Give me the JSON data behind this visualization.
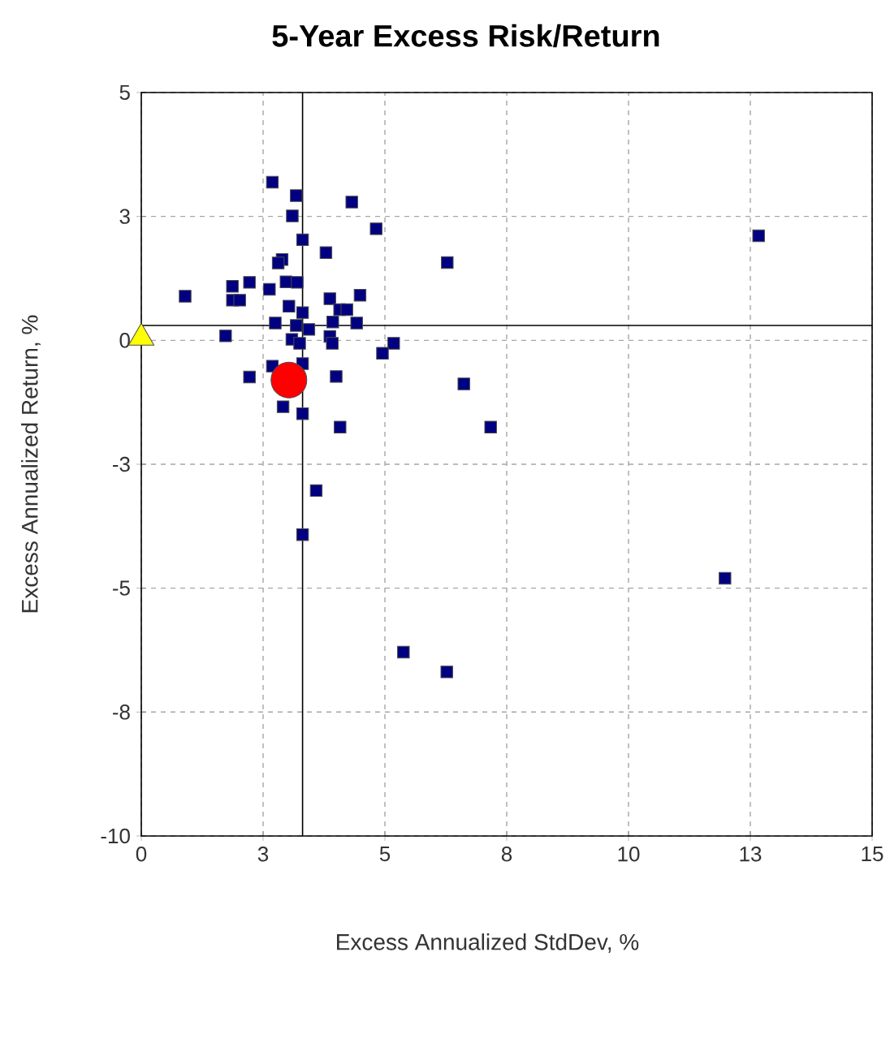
{
  "chart_data": {
    "type": "scatter",
    "title": "5-Year Excess Risk/Return",
    "xlabel": "Excess Annualized StdDev, %",
    "ylabel": "Excess Annualized Return, %",
    "xlim": [
      0,
      15
    ],
    "ylim": [
      -10,
      5
    ],
    "xticks": [
      0,
      {
        "value": 2.5,
        "label": "3"
      },
      5,
      {
        "value": 7.5,
        "label": "8"
      },
      10,
      {
        "value": 12.5,
        "label": "13"
      },
      15
    ],
    "yticks": [
      -10,
      {
        "value": -7.5,
        "label": "-8"
      },
      -5,
      {
        "value": -2.5,
        "label": "-3"
      },
      0,
      {
        "value": 2.5,
        "label": "3"
      },
      5
    ],
    "grid": true,
    "ref_lines": [
      {
        "axis": "x",
        "value": 3.31
      },
      {
        "axis": "y",
        "value": 0.3
      }
    ],
    "series": [
      {
        "color": "#000080",
        "marker": "square",
        "x": [
          2.69,
          3.18,
          4.32,
          3.1,
          4.82,
          3.31,
          3.79,
          6.28,
          2.89,
          2.81,
          0.9,
          1.87,
          2.22,
          1.87,
          2.02,
          2.63,
          2.97,
          3.2,
          3.03,
          3.31,
          3.87,
          4.49,
          4.07,
          4.22,
          2.75,
          3.18,
          3.44,
          3.93,
          4.42,
          1.73,
          3.09,
          3.25,
          3.87,
          3.92,
          5.18,
          4.95,
          3.31,
          2.69,
          2.22,
          4.0,
          2.91,
          3.31,
          4.08,
          3.59,
          3.31,
          12.67,
          11.98,
          5.38,
          6.27,
          6.62,
          7.17
        ],
        "values": [
          3.19,
          2.92,
          2.79,
          2.51,
          2.25,
          2.03,
          1.77,
          1.57,
          1.63,
          1.56,
          0.89,
          1.09,
          1.17,
          0.81,
          0.81,
          1.03,
          1.18,
          1.17,
          0.69,
          0.56,
          0.84,
          0.91,
          0.62,
          0.62,
          0.35,
          0.3,
          0.22,
          0.37,
          0.35,
          0.09,
          0.02,
          -0.06,
          0.08,
          -0.06,
          -0.06,
          -0.26,
          -0.47,
          -0.52,
          -0.74,
          -0.73,
          -1.34,
          -1.48,
          -1.75,
          -3.03,
          -3.92,
          2.11,
          -4.8,
          -6.29,
          -6.69,
          -0.88,
          -1.75
        ]
      },
      {
        "color": "#ffff00",
        "marker": "triangle",
        "x": [
          0
        ],
        "values": [
          0.05
        ]
      },
      {
        "color": "#ff0000",
        "marker": "circle",
        "x": [
          3.03
        ],
        "values": [
          -0.8
        ]
      }
    ]
  }
}
